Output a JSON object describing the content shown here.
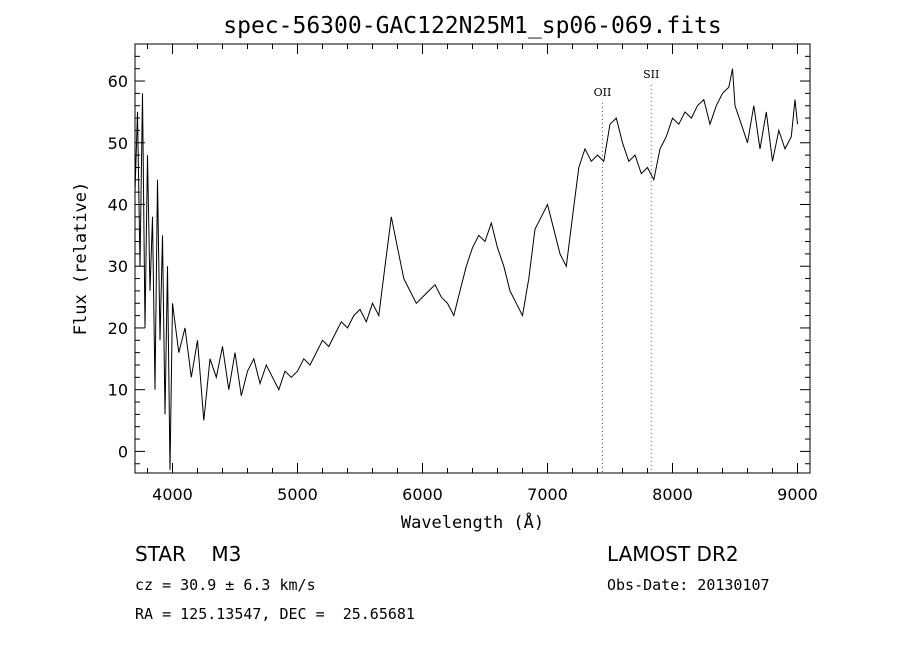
{
  "chart_data": {
    "type": "line",
    "title": "spec-56300-GAC122N25M1_sp06-069.fits",
    "xlabel": "Wavelength (Å)",
    "ylabel": "Flux (relative)",
    "xlim": [
      3700,
      9100
    ],
    "ylim": [
      -3.5,
      66
    ],
    "x_ticks": [
      4000,
      5000,
      6000,
      7000,
      8000,
      9000
    ],
    "y_ticks": [
      0,
      10,
      20,
      30,
      40,
      50,
      60
    ],
    "grid": false,
    "series": [
      {
        "x": [
          3700,
          3720,
          3740,
          3760,
          3780,
          3800,
          3820,
          3840,
          3860,
          3880,
          3900,
          3920,
          3940,
          3960,
          3980,
          4000,
          4050,
          4100,
          4150,
          4200,
          4250,
          4300,
          4350,
          4400,
          4450,
          4500,
          4550,
          4600,
          4650,
          4700,
          4750,
          4800,
          4850,
          4900,
          4950,
          5000,
          5050,
          5100,
          5150,
          5200,
          5250,
          5300,
          5350,
          5400,
          5450,
          5500,
          5550,
          5600,
          5650,
          5700,
          5750,
          5800,
          5850,
          5900,
          5950,
          6000,
          6050,
          6100,
          6150,
          6200,
          6250,
          6300,
          6350,
          6400,
          6450,
          6500,
          6550,
          6600,
          6650,
          6700,
          6750,
          6800,
          6850,
          6900,
          6950,
          7000,
          7050,
          7100,
          7150,
          7200,
          7250,
          7300,
          7350,
          7400,
          7450,
          7500,
          7550,
          7600,
          7650,
          7700,
          7750,
          7800,
          7850,
          7900,
          7950,
          8000,
          8050,
          8100,
          8150,
          8200,
          8250,
          8300,
          8350,
          8400,
          8450,
          8480,
          8500,
          8550,
          8600,
          8650,
          8700,
          8750,
          8800,
          8850,
          8900,
          8950,
          8980,
          9000
        ],
        "y": [
          42,
          55,
          30,
          58,
          20,
          48,
          26,
          38,
          10,
          44,
          18,
          35,
          6,
          30,
          -3,
          24,
          16,
          20,
          12,
          18,
          5,
          15,
          12,
          17,
          10,
          16,
          9,
          13,
          15,
          11,
          14,
          12,
          10,
          13,
          12,
          13,
          15,
          14,
          16,
          18,
          17,
          19,
          21,
          20,
          22,
          23,
          21,
          24,
          22,
          30,
          38,
          33,
          28,
          26,
          24,
          25,
          26,
          27,
          25,
          24,
          22,
          26,
          30,
          33,
          35,
          34,
          37,
          33,
          30,
          26,
          24,
          22,
          28,
          36,
          38,
          40,
          36,
          32,
          30,
          38,
          46,
          49,
          47,
          48,
          47,
          53,
          54,
          50,
          47,
          48,
          45,
          46,
          44,
          49,
          51,
          54,
          53,
          55,
          54,
          56,
          57,
          53,
          56,
          58,
          59,
          62,
          56,
          53,
          50,
          56,
          49,
          55,
          47,
          52,
          49,
          51,
          57,
          53
        ]
      }
    ],
    "annotations": [
      {
        "label": "OII",
        "x": 7440
      },
      {
        "label": "SII",
        "x": 7830
      }
    ]
  },
  "info": {
    "class": "STAR    M3",
    "cz": "cz = 30.9 ± 6.3 km/s",
    "coords": "RA = 125.13547, DEC =  25.65681",
    "survey": "LAMOST DR2",
    "obsdate": "Obs-Date: 20130107"
  }
}
